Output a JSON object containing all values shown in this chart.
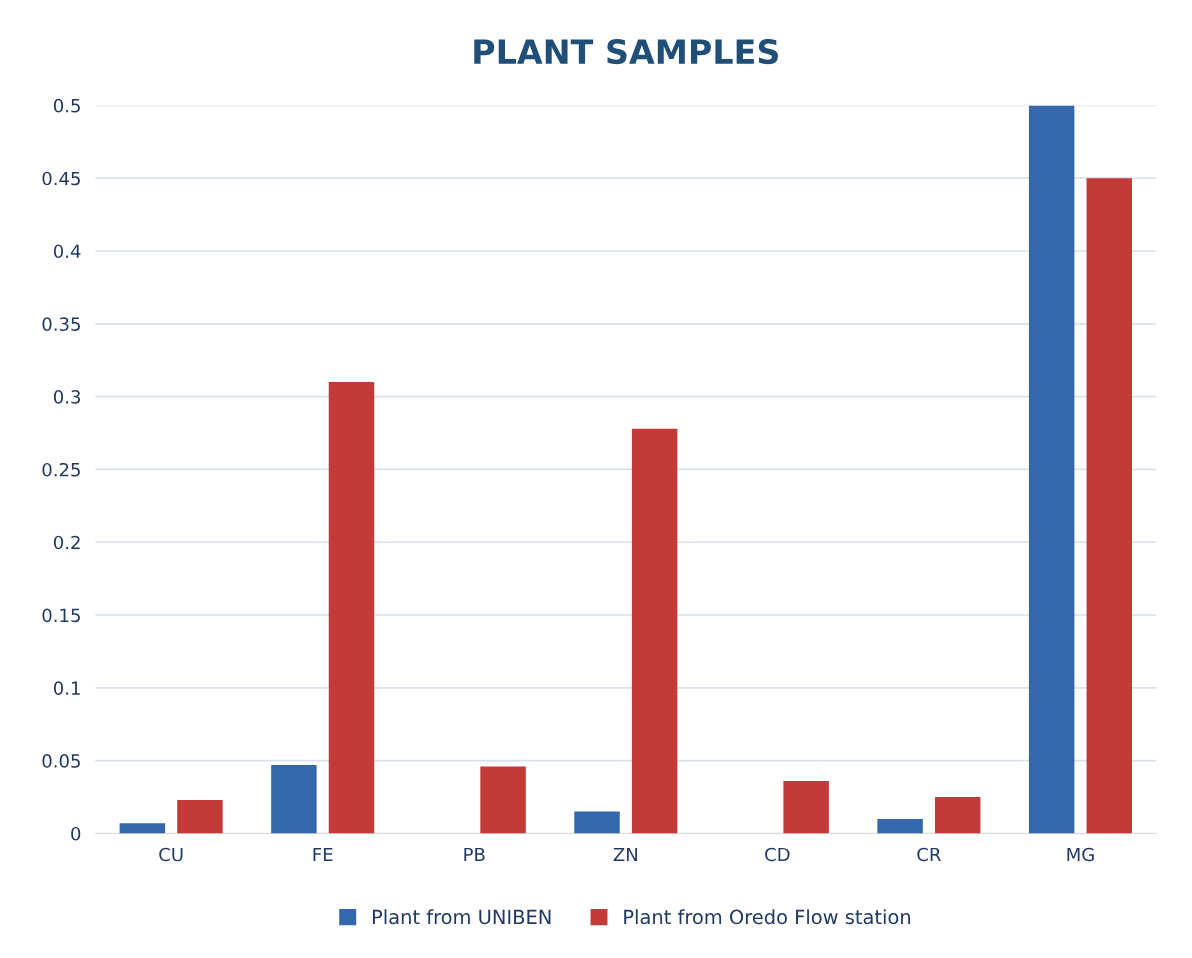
{
  "chart_data": {
    "type": "bar",
    "title": "PLANT SAMPLES",
    "categories": [
      "CU",
      "FE",
      "PB",
      "ZN",
      "CD",
      "CR",
      "MG"
    ],
    "series": [
      {
        "name": "Plant from UNIBEN",
        "color": "#3567ad",
        "values": [
          0.007,
          0.047,
          0,
          0.015,
          0,
          0.01,
          0.5
        ]
      },
      {
        "name": "Plant from Oredo Flow station",
        "color": "#c23b36",
        "values": [
          0.023,
          0.31,
          0.046,
          0.278,
          0.036,
          0.025,
          0.45
        ]
      }
    ],
    "ylim": [
      0,
      0.5
    ],
    "yticks": [
      0,
      0.05,
      0.1,
      0.15,
      0.2,
      0.25,
      0.3,
      0.35,
      0.4,
      0.45,
      0.5
    ],
    "grid": "y",
    "legend": "bottom"
  }
}
